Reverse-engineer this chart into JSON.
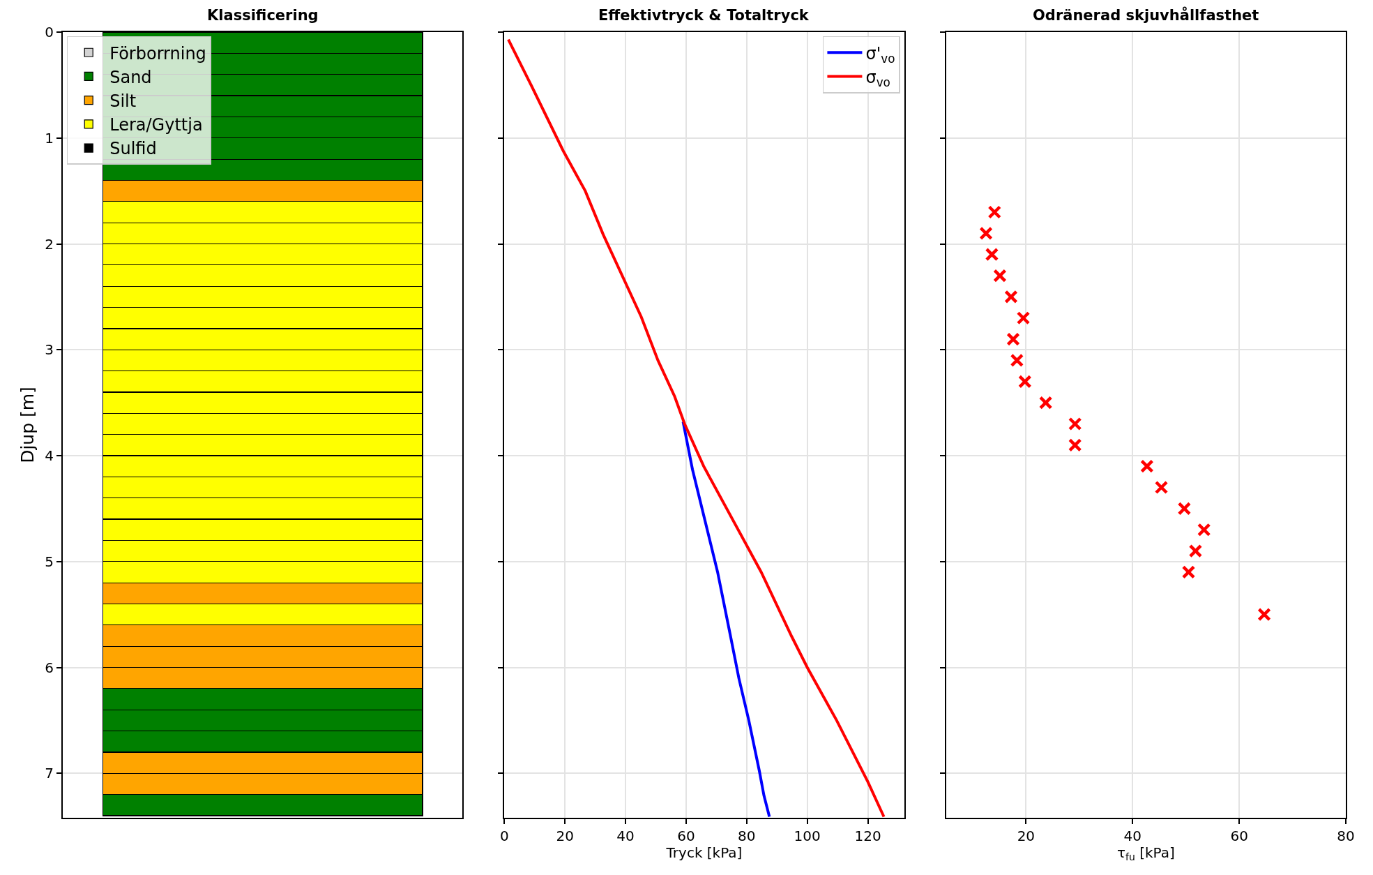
{
  "chart_data": [
    {
      "type": "bar",
      "title": "Klassificering",
      "ylabel": "Djup [m]",
      "categories": [
        null
      ],
      "stacked": true,
      "ylim": [
        7.42,
        0
      ],
      "yticks": [
        0,
        1,
        2,
        3,
        4,
        5,
        6,
        7
      ],
      "grid": "y",
      "legend": "top left",
      "tick_labels": "y",
      "series": [
        {
          "name": "Förborrning",
          "color": "#d3d3d3",
          "values": [
            0
          ]
        },
        {
          "name": "Sand",
          "color": "#008000",
          "values": [
            0.2
          ]
        },
        {
          "color": "#008000",
          "values": [
            0.2
          ]
        },
        {
          "color": "#008000",
          "values": [
            0.2
          ]
        },
        {
          "color": "#008000",
          "values": [
            0.2
          ]
        },
        {
          "color": "#008000",
          "values": [
            0.2
          ]
        },
        {
          "color": "#008000",
          "values": [
            0.2
          ]
        },
        {
          "color": "#008000",
          "values": [
            0.2
          ]
        },
        {
          "name": "Silt",
          "color": "#ffa500",
          "values": [
            0.2
          ]
        },
        {
          "name": "Lera/Gyttja",
          "color": "#ffff00",
          "values": [
            0.2
          ]
        },
        {
          "color": "#ffff00",
          "values": [
            0.2
          ]
        },
        {
          "color": "#ffff00",
          "values": [
            0.2
          ]
        },
        {
          "color": "#ffff00",
          "values": [
            0.2
          ]
        },
        {
          "color": "#ffff00",
          "values": [
            0.2
          ]
        },
        {
          "color": "#ffff00",
          "values": [
            0.2
          ]
        },
        {
          "color": "#ffff00",
          "values": [
            0.2
          ]
        },
        {
          "color": "#ffff00",
          "values": [
            0.2
          ]
        },
        {
          "color": "#ffff00",
          "values": [
            0.2
          ]
        },
        {
          "color": "#ffff00",
          "values": [
            0.2
          ]
        },
        {
          "color": "#ffff00",
          "values": [
            0.2
          ]
        },
        {
          "color": "#ffff00",
          "values": [
            0.2
          ]
        },
        {
          "color": "#ffff00",
          "values": [
            0.2
          ]
        },
        {
          "color": "#ffff00",
          "values": [
            0.2
          ]
        },
        {
          "color": "#ffff00",
          "values": [
            0.2
          ]
        },
        {
          "color": "#ffff00",
          "values": [
            0.2
          ]
        },
        {
          "color": "#ffff00",
          "values": [
            0.2
          ]
        },
        {
          "color": "#ffff00",
          "values": [
            0.2
          ]
        },
        {
          "color": "#ffa500",
          "values": [
            0.2
          ]
        },
        {
          "color": "#ffff00",
          "values": [
            0.2
          ]
        },
        {
          "color": "#ffa500",
          "values": [
            0.2
          ]
        },
        {
          "color": "#ffa500",
          "values": [
            0.2
          ]
        },
        {
          "color": "#ffa500",
          "values": [
            0.2
          ]
        },
        {
          "color": "#008000",
          "values": [
            0.2
          ]
        },
        {
          "color": "#008000",
          "values": [
            0.2
          ]
        },
        {
          "color": "#008000",
          "values": [
            0.2
          ]
        },
        {
          "color": "#ffa500",
          "values": [
            0.2
          ]
        },
        {
          "color": "#ffa500",
          "values": [
            0.2
          ]
        },
        {
          "color": "#008000",
          "values": [
            0.2
          ]
        },
        {
          "name": "Sulfid",
          "color": "#000000",
          "values": [
            0
          ]
        }
      ]
    },
    {
      "type": "line",
      "title": "Effektivtryck & Totaltryck",
      "xlabel": "Tryck [kPa]",
      "xlim": [
        0,
        132
      ],
      "xticks": [
        0,
        20,
        40,
        60,
        80,
        100,
        120
      ],
      "ylim": [
        7.42,
        0
      ],
      "yticks": [
        0,
        1,
        2,
        3,
        4,
        5,
        6,
        7
      ],
      "grid": true,
      "legend": "top right",
      "tick_labels": "x",
      "marker": "none",
      "line_style": "solid",
      "series": [
        {
          "name": "σ'$_{vo}$",
          "color": "#0000ff",
          "x": [
            59,
            62.1,
            70.4,
            74.7,
            77.4,
            80.7,
            84.2,
            85.7,
            87.5
          ],
          "values": [
            3.68,
            4.13,
            5.1,
            5.71,
            6.1,
            6.5,
            6.98,
            7.21,
            7.41
          ]
        },
        {
          "name": "σ$_{vo}$",
          "color": "#ff0000",
          "x": [
            1.3,
            8.3,
            19.4,
            26.7,
            32.6,
            45.2,
            50.7,
            56.2,
            59.5,
            65.8,
            84.8,
            94.9,
            100,
            109.7,
            120,
            125.3
          ],
          "values": [
            0.07,
            0.47,
            1.12,
            1.5,
            1.91,
            2.69,
            3.1,
            3.44,
            3.7,
            4.1,
            5.1,
            5.71,
            6.0,
            6.5,
            7.08,
            7.41
          ]
        }
      ]
    },
    {
      "type": "scatter",
      "title": "Odränerad skjuvhållfasthet",
      "xlabel": "τ$_{fu}$ [kPa]",
      "xlim": [
        5,
        80
      ],
      "xticks": [
        20,
        40,
        60,
        80
      ],
      "ylim": [
        7.42,
        0
      ],
      "yticks": [
        0,
        1,
        2,
        3,
        4,
        5,
        6,
        7
      ],
      "grid": true,
      "tick_labels": "x",
      "marker": "cross",
      "series": [
        {
          "color": "#ff0000",
          "x": [
            14.1,
            12.5,
            13.6,
            15.1,
            17.2,
            19.5,
            17.6,
            18.3,
            19.8,
            23.7,
            29.2,
            29.2,
            42.7,
            45.4,
            49.7,
            53.4,
            51.8,
            50.5,
            64.7
          ],
          "values": [
            1.7,
            1.9,
            2.1,
            2.3,
            2.5,
            2.7,
            2.9,
            3.1,
            3.3,
            3.5,
            3.7,
            3.9,
            4.1,
            4.3,
            4.5,
            4.7,
            4.9,
            5.1,
            5.5
          ]
        }
      ]
    }
  ]
}
